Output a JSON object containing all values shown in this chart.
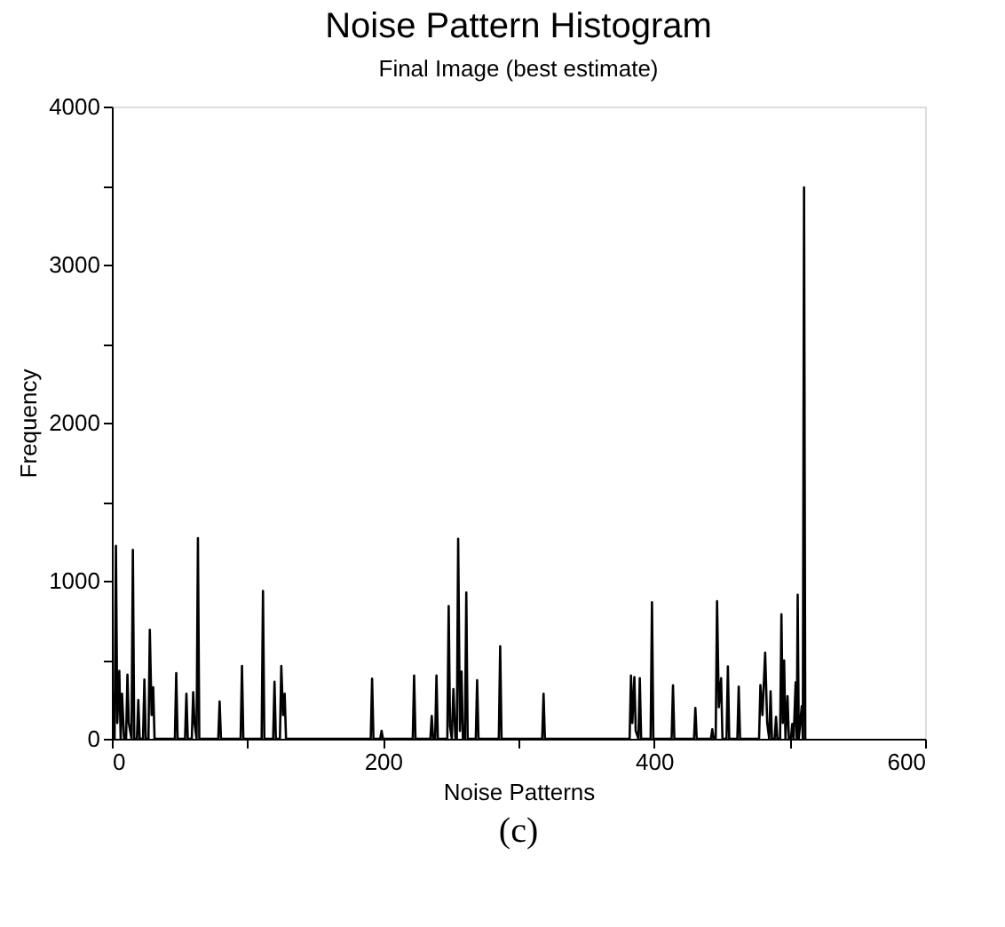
{
  "chart_data": {
    "type": "line",
    "title": "Noise Pattern Histogram",
    "subtitle": "Final Image (best estimate)",
    "xlabel": "Noise Patterns",
    "ylabel": "Frequency",
    "annotations": [
      "(c)"
    ],
    "grid": false,
    "legend": false,
    "marker": "none",
    "line_style": "solid",
    "xlim": [
      0,
      600
    ],
    "ylim": [
      0,
      4000
    ],
    "xticks": [
      0,
      {
        "value": 100,
        "label": null
      },
      200,
      {
        "value": 300,
        "label": null
      },
      400,
      {
        "value": 500,
        "label": null
      },
      600
    ],
    "yticks": [
      0,
      {
        "value": 500,
        "label": null
      },
      1000,
      {
        "value": 1500,
        "label": null
      },
      2000,
      {
        "value": 2500,
        "label": null
      },
      3000,
      {
        "value": 3500,
        "label": null
      },
      4000
    ],
    "series": [
      {
        "color": "#000000",
        "x": [
          0,
          1,
          2,
          3,
          4,
          5.5,
          6.5,
          7.5,
          9,
          10.5,
          11.5,
          12.5,
          14.5,
          15.5,
          16.5,
          18.5,
          19.5,
          20.5,
          23,
          24,
          25,
          27,
          28,
          29.3,
          30.5,
          31.5,
          46.5,
          47.5,
          48.5,
          54,
          55,
          56,
          59,
          60,
          61,
          62.5,
          63.5,
          64.5,
          78.5,
          79.5,
          80.5,
          95,
          96,
          97,
          110.5,
          111.5,
          112.5,
          119,
          120,
          121,
          124,
          125,
          126.3,
          127.5,
          128.5,
          191,
          192,
          193,
          198,
          199,
          200,
          222,
          223,
          224,
          235,
          236,
          237,
          238.5,
          239.5,
          240.5,
          247.5,
          248.5,
          249.5,
          250.8,
          252,
          253.5,
          254.5,
          255.5,
          256.8,
          258,
          259,
          260.5,
          261.5,
          262.5,
          268.5,
          269.5,
          270.5,
          285.5,
          286.5,
          287.5,
          317.5,
          318.5,
          319.5,
          382,
          383,
          384,
          385.5,
          386.5,
          388.5,
          389.5,
          390.5,
          397.5,
          398.5,
          399.5,
          413,
          414,
          415,
          429.5,
          430.5,
          431.5,
          442,
          443,
          444,
          445.5,
          446.5,
          447.8,
          449.5,
          450.5,
          453.5,
          454.5,
          455.5,
          461.5,
          462.5,
          463.5,
          477.5,
          478.5,
          480,
          482,
          483.5,
          485,
          486,
          487,
          489,
          490,
          491,
          493,
          494,
          495,
          496,
          497,
          498.5,
          499.5,
          501,
          502,
          503,
          504.5,
          505.3,
          506,
          506.8,
          509,
          509.8,
          510.7,
          511.6
        ],
        "values": [
          0,
          280,
          0,
          1220,
          100,
          430,
          0,
          285,
          0,
          0,
          405,
          100,
          0,
          1195,
          0,
          0,
          245,
          0,
          0,
          375,
          0,
          0,
          690,
          150,
          325,
          0,
          0,
          415,
          0,
          0,
          285,
          0,
          0,
          295,
          100,
          0,
          1270,
          0,
          0,
          235,
          0,
          0,
          460,
          0,
          0,
          935,
          0,
          0,
          360,
          0,
          0,
          460,
          150,
          285,
          0,
          0,
          380,
          0,
          0,
          50,
          0,
          0,
          400,
          0,
          0,
          145,
          0,
          0,
          400,
          0,
          0,
          840,
          80,
          0,
          315,
          0,
          0,
          1265,
          50,
          425,
          0,
          0,
          925,
          0,
          0,
          370,
          0,
          0,
          585,
          0,
          0,
          285,
          0,
          0,
          400,
          100,
          390,
          50,
          0,
          383,
          0,
          0,
          863,
          0,
          0,
          338,
          0,
          0,
          195,
          0,
          0,
          60,
          0,
          0,
          870,
          200,
          383,
          0,
          0,
          458,
          0,
          0,
          330,
          0,
          0,
          340,
          150,
          544,
          100,
          0,
          300,
          0,
          0,
          139,
          0,
          0,
          788,
          100,
          495,
          0,
          270,
          0,
          0,
          94,
          0,
          356,
          0,
          911,
          0,
          206,
          0,
          3488,
          0
        ]
      }
    ]
  }
}
